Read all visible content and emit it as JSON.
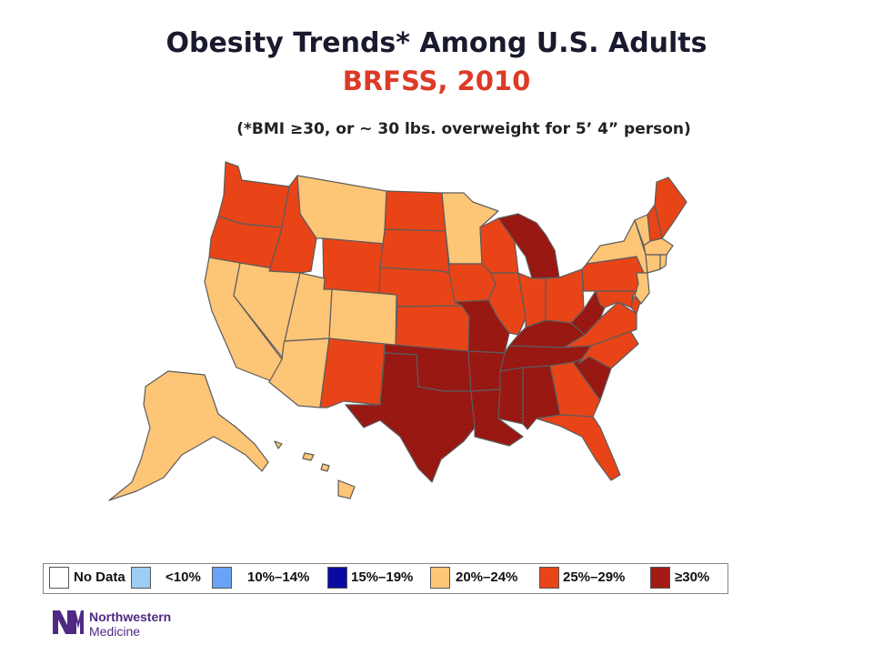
{
  "title": "Obesity Trends* Among U.S. Adults",
  "subtitle": "BRFSS, 2010",
  "footnote": "(*BMI ≥30, or ~ 30 lbs. overweight for 5’ 4” person)",
  "legend": [
    {
      "label": "No Data",
      "color": "#ffffff"
    },
    {
      "label": "<10%",
      "color": "#9dcdf5"
    },
    {
      "label": "10%–14%",
      "color": "#6aa3f5"
    },
    {
      "label": "15%–19%",
      "color": "#0a0aa0"
    },
    {
      "label": "20%–24%",
      "color": "#fdc576"
    },
    {
      "label": "25%–29%",
      "color": "#e84418"
    },
    {
      "label": "≥30%",
      "color": "#a31a14"
    }
  ],
  "colors": {
    "low": "#fdc576",
    "mid": "#e84418",
    "high": "#a31a14"
  },
  "logo": {
    "name": "Northwestern",
    "sub": "Medicine",
    "color": "#4e2a84",
    "icon": "nm-monogram-icon"
  },
  "states": {
    "WA": "mid",
    "OR": "mid",
    "CA": "low",
    "NV": "low",
    "ID": "mid",
    "MT": "low",
    "WY": "mid",
    "UT": "low",
    "CO": "low",
    "AZ": "low",
    "NM": "mid",
    "ND": "mid",
    "SD": "mid",
    "NE": "mid",
    "KS": "mid",
    "OK": "high",
    "TX": "high",
    "MN": "low",
    "IA": "mid",
    "MO": "high",
    "AR": "high",
    "LA": "high",
    "WI": "mid",
    "IL": "mid",
    "MI": "high",
    "IN": "mid",
    "OH": "mid",
    "KY": "high",
    "TN": "high",
    "MS": "high",
    "AL": "high",
    "GA": "mid",
    "FL": "mid",
    "SC": "high",
    "NC": "mid",
    "VA": "mid",
    "WV": "high",
    "PA": "mid",
    "NY": "low",
    "VT": "low",
    "NH": "mid",
    "ME": "mid",
    "MA": "low",
    "CT": "low",
    "RI": "low",
    "NJ": "low",
    "DE": "mid",
    "MD": "mid",
    "AK": "low",
    "HI": "low"
  }
}
